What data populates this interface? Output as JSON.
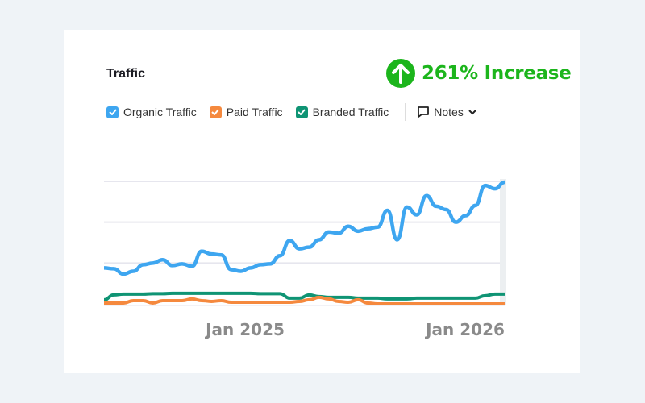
{
  "card": {
    "title": "Traffic",
    "increase": {
      "label": "261% Increase",
      "icon": "arrow-up-circle-icon",
      "color": "#1cb51c"
    }
  },
  "legend": [
    {
      "label": "Organic Traffic",
      "color": "#3ea6f0",
      "checked": true
    },
    {
      "label": "Paid Traffic",
      "color": "#f5893e",
      "checked": true
    },
    {
      "label": "Branded Traffic",
      "color": "#0f9474",
      "checked": true
    }
  ],
  "notes": {
    "label": "Notes",
    "icon": "comment-icon",
    "dropdown_icon": "chevron-down-icon"
  },
  "chart_data": {
    "type": "line",
    "x_tick_labels": [
      "Jan 2025",
      "Jan 2026"
    ],
    "ylim": [
      0,
      300
    ],
    "y_scale_note": "",
    "grid": true,
    "series": [
      {
        "name": "Organic Traffic",
        "color": "#3ea6f0",
        "values": [
          88,
          86,
          73,
          80,
          96,
          100,
          108,
          94,
          98,
          92,
          129,
          122,
          120,
          84,
          80,
          88,
          96,
          98,
          118,
          155,
          135,
          139,
          157,
          176,
          173,
          190,
          178,
          184,
          188,
          229,
          157,
          237,
          218,
          265,
          239,
          231,
          200,
          216,
          241,
          290,
          282,
          298
        ]
      },
      {
        "name": "Paid Traffic",
        "color": "#f5893e",
        "values": [
          2,
          2,
          2,
          8,
          8,
          2,
          8,
          8,
          8,
          12,
          8,
          6,
          8,
          4,
          4,
          4,
          4,
          4,
          4,
          4,
          6,
          10,
          16,
          12,
          6,
          4,
          10,
          2,
          0,
          0,
          0,
          0,
          0,
          0,
          0,
          0,
          0,
          0,
          0,
          0,
          0,
          0
        ]
      },
      {
        "name": "Branded Traffic",
        "color": "#0f9474",
        "values": [
          10,
          22,
          24,
          24,
          24,
          25,
          25,
          26,
          26,
          26,
          26,
          26,
          26,
          26,
          26,
          26,
          25,
          25,
          25,
          14,
          14,
          22,
          18,
          16,
          16,
          16,
          14,
          14,
          14,
          12,
          12,
          12,
          14,
          14,
          14,
          14,
          14,
          14,
          14,
          20,
          24,
          24
        ]
      }
    ]
  }
}
